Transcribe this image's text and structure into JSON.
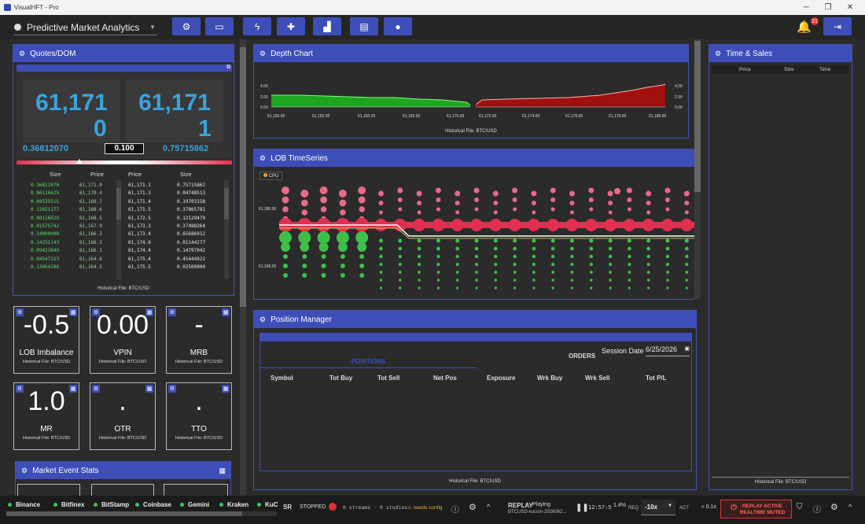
{
  "window": {
    "title": "VisualHFT - Pro"
  },
  "app_selector": {
    "label": "Predictive Market Analytics"
  },
  "notifications": {
    "count": "21"
  },
  "toolbar_icons": [
    "gear-icon",
    "monitor-icon",
    "bolt-icon",
    "puzzle-icon",
    "chart-icon",
    "router-icon",
    "user-icon",
    "logout-icon"
  ],
  "quotes": {
    "title": "Quotes/DOM",
    "bid_price_line1": "61,171",
    "bid_price_line2": "0",
    "ask_price_line1": "61,171",
    "ask_price_line2": "1",
    "bid_size": "0.36812070",
    "spread": "0.100",
    "ask_size": "0.75715862",
    "headers": {
      "bid_size": "Size",
      "bid_price": "Price",
      "ask_price": "Price",
      "ask_size": "Size"
    },
    "bids": [
      [
        "0.36812070",
        "61,171.0"
      ],
      [
        "0.00116629",
        "61,170.4"
      ],
      [
        "0.08535515",
        "61,168.7"
      ],
      [
        "0.12651177",
        "61,168.6"
      ],
      [
        "0.00116629",
        "61,168.5"
      ],
      [
        "0.01575742",
        "61,167.9"
      ],
      [
        "0.14000000",
        "61,166.3"
      ],
      [
        "0.14251143",
        "61,166.2"
      ],
      [
        "0.09423049",
        "61,166.1"
      ],
      [
        "0.04547223",
        "61,164.6"
      ],
      [
        "0.13064286",
        "61,164.5"
      ]
    ],
    "asks": [
      [
        "61,171.1",
        "0.75715862"
      ],
      [
        "61,171.3",
        "0.04748513"
      ],
      [
        "61,171.4",
        "0.19703158"
      ],
      [
        "61,171.5",
        "0.37865781"
      ],
      [
        "61,172.5",
        "0.12129479"
      ],
      [
        "61,173.3",
        "0.37488264"
      ],
      [
        "61,173.4",
        "0.65686912"
      ],
      [
        "61,174.0",
        "0.01144277"
      ],
      [
        "61,174.4",
        "0.14797042"
      ],
      [
        "61,175.4",
        "0.45444922"
      ],
      [
        "61,175.5",
        "0.02500000"
      ]
    ],
    "footer": "Historical File: BTC/USD"
  },
  "stats": [
    {
      "value": "-0.5",
      "label": "LOB Imbalance",
      "footer": "Historical File: BTC/USD"
    },
    {
      "value": "0.00",
      "label": "VPIN",
      "footer": "Historical File: BTC/USD"
    },
    {
      "value": "-",
      "label": "MRB",
      "footer": "Historical File: BTC/USD"
    },
    {
      "value": "1.0",
      "label": "MR",
      "footer": "Historical File: BTC/USD"
    },
    {
      "value": ".",
      "label": "OTR",
      "footer": "Historical File: BTC/USD"
    },
    {
      "value": ".",
      "label": "TTO",
      "footer": "Historical File: BTC/USD"
    }
  ],
  "market_event_stats": {
    "title": "Market Event Stats"
  },
  "depth_chart": {
    "title": "Depth Chart",
    "footer": "Historical File: BTC/USD",
    "bid_ticks": [
      "61,150.00",
      "61,155.00",
      "61,160.00",
      "61,165.00",
      "61,170.00"
    ],
    "ask_ticks": [
      "61,172.00",
      "61,174.00",
      "61,176.00",
      "61,178.00",
      "61,180.00"
    ],
    "y_ticks": [
      "4.00",
      "2.00",
      "0.00"
    ],
    "colors": {
      "bid": "#1fa51f",
      "ask": "#a01010"
    }
  },
  "lob_timeseries": {
    "title": "LOB TimeSeries",
    "legend": "CPU",
    "y_ticks": [
      "61,180.00",
      "61,160.00"
    ]
  },
  "position_manager": {
    "title": "Position Manager",
    "tab_positions": "POSITIONS",
    "tab_orders": "ORDERS",
    "session_label": "Session Date",
    "session_date": "6/25/2026",
    "columns": [
      "Symbol",
      "Tot Buy",
      "Tot Sell",
      "Net Pos",
      "Exposure",
      "Wrk Buy",
      "Wrk Sell",
      "Tot P/L"
    ],
    "footer": "Historical File: BTC/USD"
  },
  "time_sales": {
    "title": "Time & Sales",
    "columns": [
      "Price",
      "Size",
      "Time"
    ],
    "footer": "Historical File: BTC/USD"
  },
  "status_bar": {
    "exchanges": [
      "Binance",
      "Bitfinex",
      "BitStamp",
      "Coinbase",
      "Gemini",
      "Kraken",
      "KuC"
    ],
    "sr_label": "SR",
    "sr_state": "STOPPED",
    "streams": "0 streams · 0 studies",
    "needs_config": "needs config",
    "replay_label": "REPLAY",
    "replay_state": "Playing",
    "replay_file": "BTCUSD-kucoin-2026062...",
    "time": "12:57:5",
    "pct": "1.4%",
    "req": "REQ",
    "speed": "-10x",
    "act": "ACT",
    "rate": "≈ 0.1x",
    "replay_active": "REPLAY ACTIVE",
    "realtime_muted": "REALTIME MUTED"
  }
}
